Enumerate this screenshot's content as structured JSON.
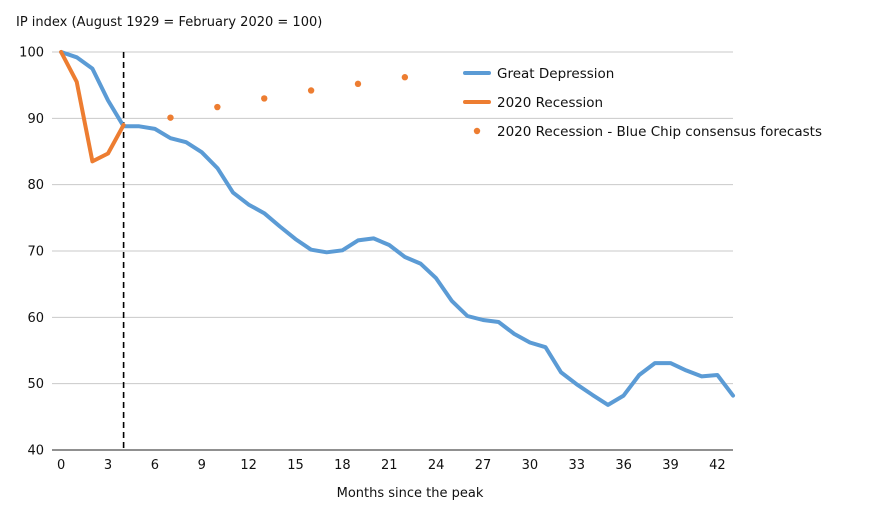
{
  "chart_data": {
    "type": "line",
    "title": "",
    "ylabel": "IP index (August 1929 = February 2020 = 100)",
    "xlabel": "Months since the peak",
    "xlim": [
      0,
      43
    ],
    "ylim": [
      40,
      100
    ],
    "xticks": [
      0,
      3,
      6,
      9,
      12,
      15,
      18,
      21,
      24,
      27,
      30,
      33,
      36,
      39,
      42
    ],
    "yticks": [
      40,
      50,
      60,
      70,
      80,
      90,
      100
    ],
    "grid": true,
    "vline_x": 4,
    "legend_position": "top-right",
    "colors": {
      "great_depression": "#5b9bd5",
      "recession_2020": "#ed7d31",
      "forecasts": "#ed7d31",
      "grid": "#c9c9c9",
      "vline": "#000000"
    },
    "series": [
      {
        "key": "great_depression",
        "name": "Great Depression",
        "kind": "line",
        "x": [
          0,
          1,
          2,
          3,
          4,
          5,
          6,
          7,
          8,
          9,
          10,
          11,
          12,
          13,
          14,
          15,
          16,
          17,
          18,
          19,
          20,
          21,
          22,
          23,
          24,
          25,
          26,
          27,
          28,
          29,
          30,
          31,
          32,
          33,
          34,
          35,
          36,
          37,
          38,
          39,
          40,
          41,
          42,
          43
        ],
        "values": [
          100,
          99.2,
          97.5,
          92.7,
          88.8,
          88.8,
          88.4,
          87.0,
          86.4,
          84.9,
          82.5,
          78.8,
          77.0,
          75.7,
          73.7,
          71.8,
          70.2,
          69.8,
          70.1,
          71.6,
          71.9,
          70.9,
          69.1,
          68.1,
          65.9,
          62.5,
          60.2,
          59.6,
          59.3,
          57.5,
          56.2,
          55.5,
          51.7,
          49.9,
          48.3,
          46.8,
          48.2,
          51.3,
          53.1,
          53.1,
          52.0,
          51.1,
          51.3,
          48.2
        ]
      },
      {
        "key": "recession_2020",
        "name": "2020 Recession",
        "kind": "line",
        "x": [
          0,
          1,
          2,
          3,
          4
        ],
        "values": [
          100,
          95.5,
          83.5,
          84.7,
          89.0
        ]
      },
      {
        "key": "forecasts",
        "name": "2020 Recession - Blue Chip consensus forecasts",
        "kind": "dots",
        "x": [
          7,
          10,
          13,
          16,
          19,
          22
        ],
        "values": [
          90.1,
          91.7,
          93.0,
          94.2,
          95.2,
          96.2
        ]
      }
    ]
  }
}
